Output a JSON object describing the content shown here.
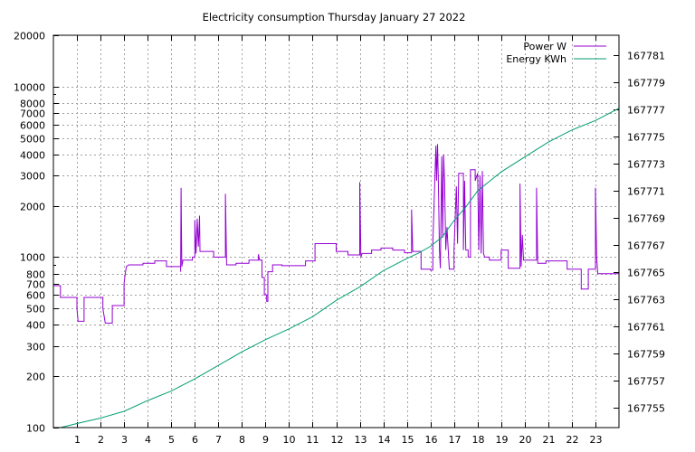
{
  "chart_data": {
    "type": "line",
    "title": "Electricity consumption Thursday January 27 2022",
    "xlabel": "",
    "ylabel": "",
    "y2label": "",
    "grid": true,
    "legend_position": "top-right",
    "x_ticks": [
      "1",
      "2",
      "3",
      "4",
      "5",
      "6",
      "7",
      "8",
      "9",
      "10",
      "11",
      "12",
      "13",
      "14",
      "15",
      "16",
      "17",
      "18",
      "19",
      "20",
      "21",
      "22",
      "23"
    ],
    "x_range": [
      0,
      24
    ],
    "y_scale": "log",
    "y_range": [
      100,
      20000
    ],
    "y_ticks": [
      "100",
      "200",
      "300",
      "400",
      "500",
      "600",
      "700",
      "800",
      "1000",
      "2000",
      "3000",
      "4000",
      "5000",
      "6000",
      "7000",
      "8000",
      "10000",
      "20000"
    ],
    "y2_range": [
      167753.5,
      167782.5
    ],
    "y2_ticks": [
      "167755",
      "167757",
      "167759",
      "167761",
      "167763",
      "167765",
      "167767",
      "167769",
      "167771",
      "167773",
      "167775",
      "167777",
      "167779",
      "167781"
    ],
    "colors": {
      "power": "#9400d3",
      "energy": "#009e73"
    },
    "series": [
      {
        "name": "Power W",
        "axis": "y",
        "step": true,
        "points": [
          [
            0.0,
            680
          ],
          [
            0.3,
            680
          ],
          [
            0.3,
            580
          ],
          [
            0.6,
            580
          ],
          [
            1.0,
            580
          ],
          [
            1.0,
            500
          ],
          [
            1.05,
            420
          ],
          [
            1.3,
            420
          ],
          [
            1.3,
            580
          ],
          [
            1.6,
            580
          ],
          [
            2.1,
            580
          ],
          [
            2.1,
            500
          ],
          [
            2.2,
            410
          ],
          [
            2.5,
            410
          ],
          [
            2.5,
            520
          ],
          [
            2.7,
            520
          ],
          [
            3.0,
            520
          ],
          [
            3.0,
            700
          ],
          [
            3.05,
            800
          ],
          [
            3.1,
            880
          ],
          [
            3.2,
            900
          ],
          [
            3.8,
            900
          ],
          [
            3.8,
            920
          ],
          [
            4.3,
            920
          ],
          [
            4.3,
            950
          ],
          [
            4.8,
            950
          ],
          [
            4.8,
            880
          ],
          [
            5.4,
            880
          ],
          [
            5.4,
            820
          ],
          [
            5.42,
            2550
          ],
          [
            5.45,
            880
          ],
          [
            5.5,
            960
          ],
          [
            5.9,
            960
          ],
          [
            5.9,
            1000
          ],
          [
            6.0,
            1000
          ],
          [
            6.0,
            1650
          ],
          [
            6.05,
            1050
          ],
          [
            6.1,
            1680
          ],
          [
            6.15,
            1150
          ],
          [
            6.2,
            1750
          ],
          [
            6.22,
            1080
          ],
          [
            6.8,
            1080
          ],
          [
            6.8,
            1000
          ],
          [
            7.3,
            1000
          ],
          [
            7.3,
            2350
          ],
          [
            7.35,
            900
          ],
          [
            7.75,
            900
          ],
          [
            7.75,
            920
          ],
          [
            8.3,
            920
          ],
          [
            8.3,
            960
          ],
          [
            8.7,
            960
          ],
          [
            8.7,
            1040
          ],
          [
            8.75,
            960
          ],
          [
            8.85,
            960
          ],
          [
            8.85,
            760
          ],
          [
            8.95,
            760
          ],
          [
            8.95,
            600
          ],
          [
            9.05,
            600
          ],
          [
            9.05,
            550
          ],
          [
            9.1,
            550
          ],
          [
            9.1,
            820
          ],
          [
            9.3,
            820
          ],
          [
            9.3,
            900
          ],
          [
            9.7,
            900
          ],
          [
            9.7,
            890
          ],
          [
            10.7,
            890
          ],
          [
            10.7,
            950
          ],
          [
            11.1,
            950
          ],
          [
            11.1,
            1200
          ],
          [
            12.0,
            1200
          ],
          [
            12.0,
            1080
          ],
          [
            12.5,
            1080
          ],
          [
            12.5,
            1030
          ],
          [
            13.0,
            1030
          ],
          [
            13.0,
            2750
          ],
          [
            13.05,
            1000
          ],
          [
            13.1,
            1050
          ],
          [
            13.5,
            1050
          ],
          [
            13.5,
            1100
          ],
          [
            13.9,
            1100
          ],
          [
            13.9,
            1130
          ],
          [
            14.4,
            1130
          ],
          [
            14.4,
            1100
          ],
          [
            14.9,
            1100
          ],
          [
            14.9,
            1060
          ],
          [
            15.2,
            1060
          ],
          [
            15.2,
            1900
          ],
          [
            15.25,
            1080
          ],
          [
            15.6,
            1080
          ],
          [
            15.6,
            850
          ],
          [
            16.0,
            850
          ],
          [
            16.0,
            840
          ],
          [
            16.1,
            840
          ],
          [
            16.1,
            1200
          ],
          [
            16.15,
            2000
          ],
          [
            16.2,
            3300
          ],
          [
            16.23,
            4500
          ],
          [
            16.26,
            2800
          ],
          [
            16.3,
            4600
          ],
          [
            16.34,
            2600
          ],
          [
            16.38,
            1100
          ],
          [
            16.42,
            860
          ],
          [
            16.48,
            3900
          ],
          [
            16.52,
            1300
          ],
          [
            16.56,
            4000
          ],
          [
            16.6,
            2700
          ],
          [
            16.65,
            1100
          ],
          [
            16.7,
            1500
          ],
          [
            16.8,
            850
          ],
          [
            17.0,
            850
          ],
          [
            17.0,
            1100
          ],
          [
            17.1,
            2600
          ],
          [
            17.15,
            1200
          ],
          [
            17.2,
            3100
          ],
          [
            17.4,
            3100
          ],
          [
            17.4,
            1100
          ],
          [
            17.45,
            2800
          ],
          [
            17.5,
            1100
          ],
          [
            17.6,
            1100
          ],
          [
            17.6,
            1000
          ],
          [
            17.7,
            1000
          ],
          [
            17.7,
            3250
          ],
          [
            17.9,
            3250
          ],
          [
            17.9,
            2800
          ],
          [
            18.0,
            3100
          ],
          [
            18.05,
            1100
          ],
          [
            18.1,
            3000
          ],
          [
            18.15,
            1050
          ],
          [
            18.2,
            3200
          ],
          [
            18.25,
            1050
          ],
          [
            18.3,
            1000
          ],
          [
            18.5,
            1000
          ],
          [
            18.5,
            960
          ],
          [
            19.0,
            960
          ],
          [
            19.0,
            1100
          ],
          [
            19.3,
            1100
          ],
          [
            19.3,
            860
          ],
          [
            19.8,
            860
          ],
          [
            19.8,
            2700
          ],
          [
            19.85,
            880
          ],
          [
            19.9,
            1350
          ],
          [
            19.95,
            960
          ],
          [
            20.5,
            960
          ],
          [
            20.5,
            2550
          ],
          [
            20.55,
            920
          ],
          [
            20.9,
            920
          ],
          [
            20.9,
            950
          ],
          [
            21.8,
            950
          ],
          [
            21.8,
            850
          ],
          [
            22.4,
            850
          ],
          [
            22.4,
            650
          ],
          [
            22.7,
            650
          ],
          [
            22.7,
            850
          ],
          [
            23.0,
            850
          ],
          [
            23.0,
            2550
          ],
          [
            23.05,
            1000
          ],
          [
            23.1,
            800
          ],
          [
            24.0,
            800
          ]
        ]
      },
      {
        "name": "Energy KWh",
        "axis": "y2",
        "step": false,
        "points": [
          [
            0.3,
            167753.5
          ],
          [
            1.0,
            167753.8
          ],
          [
            2.0,
            167754.2
          ],
          [
            3.0,
            167754.7
          ],
          [
            4.0,
            167755.5
          ],
          [
            5.0,
            167756.2
          ],
          [
            6.0,
            167757.1
          ],
          [
            7.0,
            167758.1
          ],
          [
            8.0,
            167759.1
          ],
          [
            9.0,
            167760.0
          ],
          [
            10.0,
            167760.8
          ],
          [
            11.0,
            167761.7
          ],
          [
            12.0,
            167762.9
          ],
          [
            13.0,
            167763.9
          ],
          [
            14.0,
            167765.1
          ],
          [
            15.0,
            167766.0
          ],
          [
            15.5,
            167766.4
          ],
          [
            16.0,
            167766.9
          ],
          [
            16.5,
            167767.6
          ],
          [
            17.0,
            167768.8
          ],
          [
            17.5,
            167769.8
          ],
          [
            18.0,
            167771.0
          ],
          [
            18.5,
            167771.7
          ],
          [
            19.0,
            167772.4
          ],
          [
            20.0,
            167773.5
          ],
          [
            21.0,
            167774.6
          ],
          [
            22.0,
            167775.5
          ],
          [
            23.0,
            167776.2
          ],
          [
            24.0,
            167777.1
          ]
        ]
      }
    ]
  }
}
